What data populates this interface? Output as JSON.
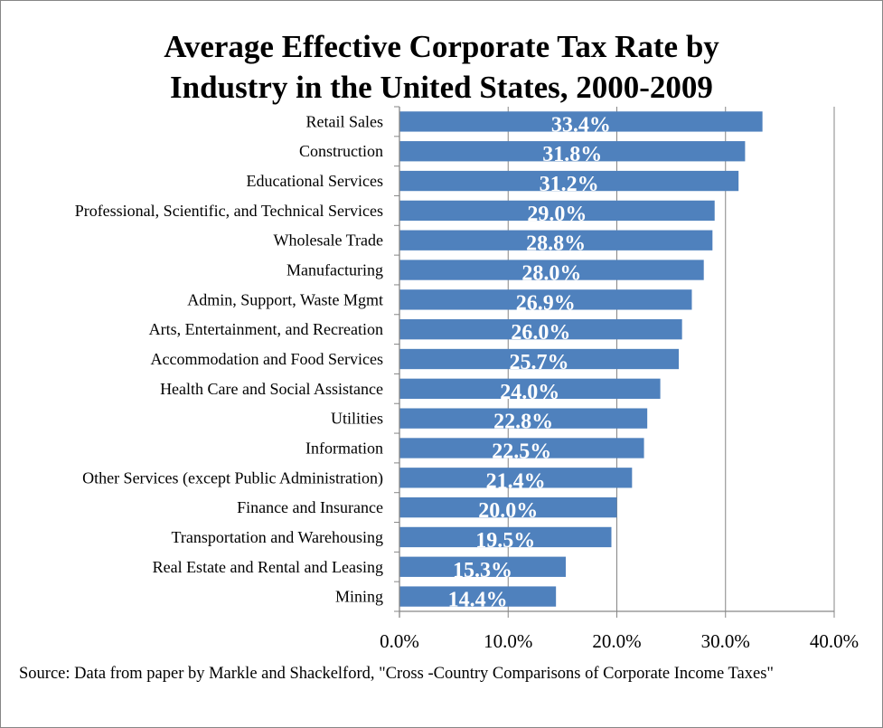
{
  "chart_data": {
    "type": "bar",
    "orientation": "horizontal",
    "title": "Average Effective Corporate Tax Rate by Industry in the United States, 2000-2009",
    "title_lines": [
      "Average Effective Corporate Tax Rate by",
      "Industry in the United States, 2000-2009"
    ],
    "categories": [
      "Retail Sales",
      "Construction",
      "Educational Services",
      "Professional, Scientific, and Technical Services",
      "Wholesale Trade",
      "Manufacturing",
      "Admin, Support, Waste Mgmt",
      "Arts, Entertainment, and Recreation",
      "Accommodation and Food Services",
      "Health Care and Social Assistance",
      "Utilities",
      "Information",
      "Other Services (except Public Administration)",
      "Finance and Insurance",
      "Transportation and Warehousing",
      "Real Estate and Rental and Leasing",
      "Mining"
    ],
    "values": [
      33.4,
      31.8,
      31.2,
      29.0,
      28.8,
      28.0,
      26.9,
      26.0,
      25.7,
      24.0,
      22.8,
      22.5,
      21.4,
      20.0,
      19.5,
      15.3,
      14.4
    ],
    "data_labels": [
      "33.4%",
      "31.8%",
      "31.2%",
      "29.0%",
      "28.8%",
      "28.0%",
      "26.9%",
      "26.0%",
      "25.7%",
      "24.0%",
      "22.8%",
      "22.5%",
      "21.4%",
      "20.0%",
      "19.5%",
      "15.3%",
      "14.4%"
    ],
    "xlabel": "",
    "ylabel": "",
    "xlim": [
      0,
      40
    ],
    "x_ticks": [
      0,
      10,
      20,
      30,
      40
    ],
    "x_tick_labels": [
      "0.0%",
      "10.0%",
      "20.0%",
      "30.0%",
      "40.0%"
    ],
    "grid": "vertical major gridlines",
    "legend": "none",
    "bar_color": "#4F81BD",
    "gridline_color": "#868686",
    "data_label_color": "#FFFFFF",
    "source_note": "Source:  Data from paper by Markle and Shackelford, \"Cross -Country Comparisons of Corporate Income Taxes\""
  }
}
